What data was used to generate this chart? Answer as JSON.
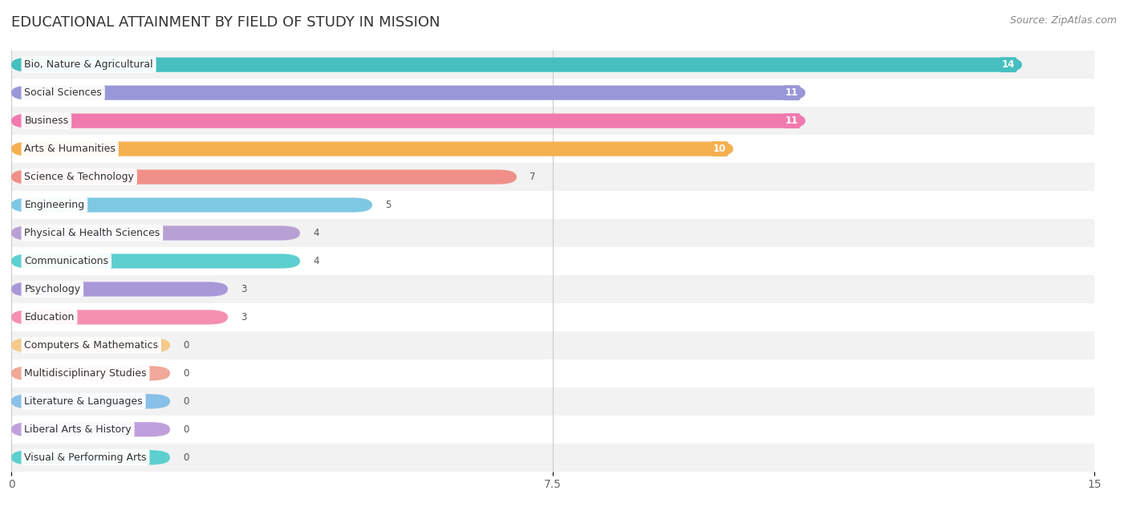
{
  "title": "EDUCATIONAL ATTAINMENT BY FIELD OF STUDY IN MISSION",
  "source": "Source: ZipAtlas.com",
  "categories": [
    "Bio, Nature & Agricultural",
    "Social Sciences",
    "Business",
    "Arts & Humanities",
    "Science & Technology",
    "Engineering",
    "Physical & Health Sciences",
    "Communications",
    "Psychology",
    "Education",
    "Computers & Mathematics",
    "Multidisciplinary Studies",
    "Literature & Languages",
    "Liberal Arts & History",
    "Visual & Performing Arts"
  ],
  "values": [
    14,
    11,
    11,
    10,
    7,
    5,
    4,
    4,
    3,
    3,
    0,
    0,
    0,
    0,
    0
  ],
  "bar_colors": [
    "#45BFBF",
    "#9898D8",
    "#F07AAE",
    "#F5B050",
    "#F09088",
    "#7EC8E3",
    "#B8A0D4",
    "#5DCFCF",
    "#A898D8",
    "#F590B0",
    "#F5C98A",
    "#F0A898",
    "#88C0E8",
    "#C0A0DC",
    "#5DCFCF"
  ],
  "bg_color": "#ffffff",
  "row_bg_odd": "#f2f2f2",
  "row_bg_even": "#ffffff",
  "xlim": [
    0,
    15
  ],
  "xticks": [
    0,
    7.5,
    15
  ],
  "title_fontsize": 13,
  "label_fontsize": 9.0,
  "value_fontsize": 8.5,
  "source_fontsize": 9,
  "zero_bar_width": 2.2
}
